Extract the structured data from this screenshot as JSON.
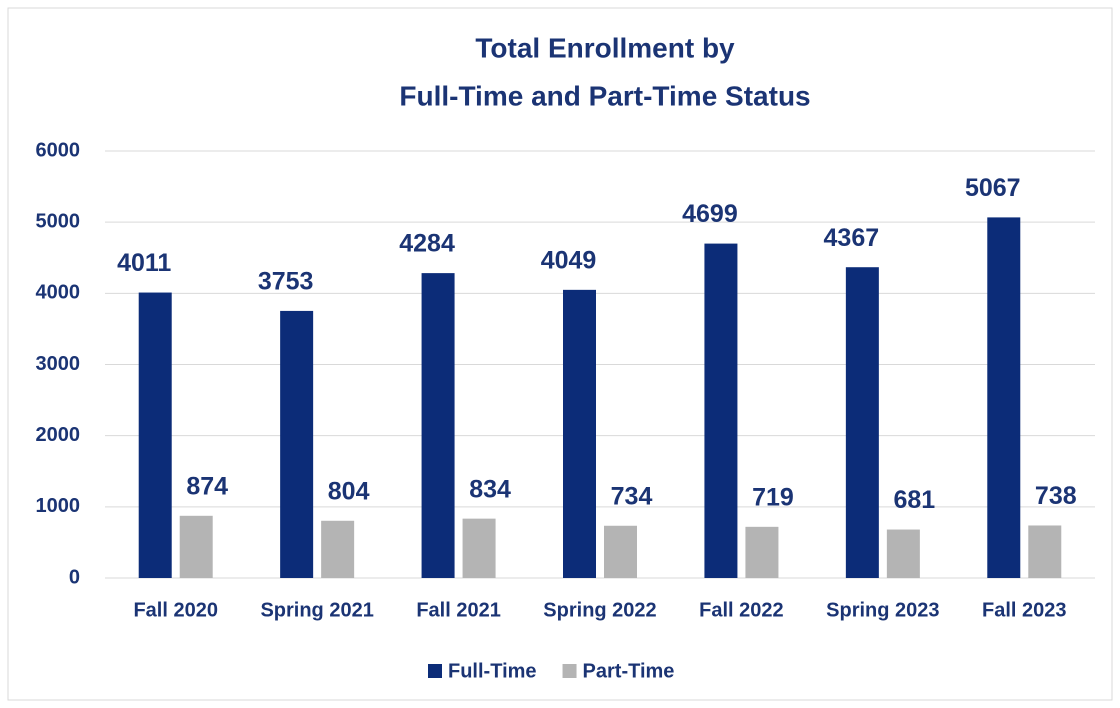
{
  "chart_data": {
    "type": "bar",
    "title": [
      "Total Enrollment by",
      "Full-Time and Part-Time Status"
    ],
    "categories": [
      "Fall 2020",
      "Spring 2021",
      "Fall 2021",
      "Spring 2022",
      "Fall 2022",
      "Spring 2023",
      "Fall 2023"
    ],
    "series": [
      {
        "name": "Full-Time",
        "color": "#0c2c78",
        "values": [
          4011,
          3753,
          4284,
          4049,
          4699,
          4367,
          5067
        ]
      },
      {
        "name": "Part-Time",
        "color": "#b4b4b4",
        "values": [
          874,
          804,
          834,
          734,
          719,
          681,
          738
        ]
      }
    ],
    "ylim": [
      0,
      6000
    ],
    "yticks": [
      0,
      1000,
      2000,
      3000,
      4000,
      5000,
      6000
    ],
    "grid": true,
    "legend": "bottom"
  }
}
